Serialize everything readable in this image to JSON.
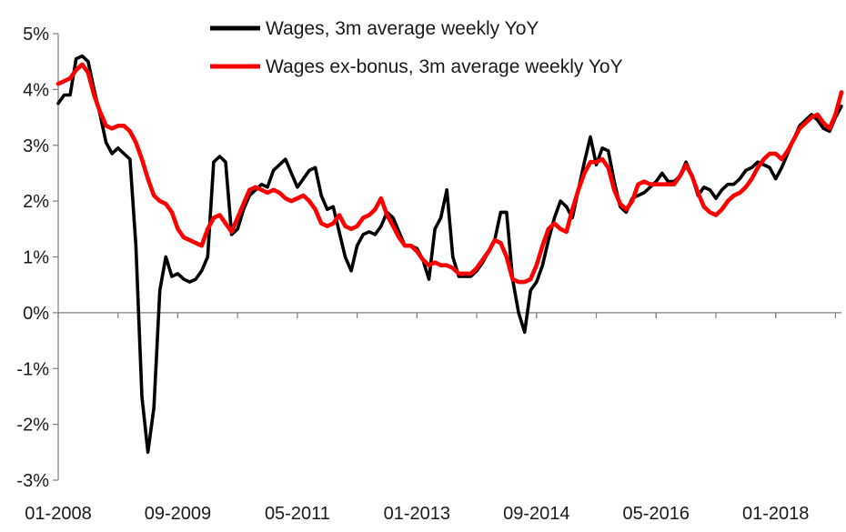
{
  "chart_data": {
    "type": "line",
    "title": "",
    "xlabel": "",
    "ylabel": "",
    "x_start": "01-2008",
    "x_end": "12-2018",
    "x_tick_labels": [
      "01-2008",
      "09-2009",
      "05-2011",
      "01-2013",
      "09-2014",
      "05-2016",
      "01-2018"
    ],
    "y_tick_labels": [
      "5%",
      "4%",
      "3%",
      "2%",
      "1%",
      "0%",
      "-1%",
      "-2%",
      "-3%"
    ],
    "ylim": [
      -3,
      5
    ],
    "grid": false,
    "legend_position": "top",
    "series": [
      {
        "name": "Wages, 3m average weekly YoY",
        "color": "#000000",
        "points": [
          [
            "01-2008",
            3.75
          ],
          [
            "02-2008",
            3.9
          ],
          [
            "03-2008",
            3.9
          ],
          [
            "04-2008",
            4.55
          ],
          [
            "05-2008",
            4.6
          ],
          [
            "06-2008",
            4.5
          ],
          [
            "07-2008",
            4.0
          ],
          [
            "08-2008",
            3.55
          ],
          [
            "09-2008",
            3.05
          ],
          [
            "10-2008",
            2.85
          ],
          [
            "11-2008",
            2.95
          ],
          [
            "12-2008",
            2.85
          ],
          [
            "01-2009",
            2.75
          ],
          [
            "02-2009",
            1.2
          ],
          [
            "03-2009",
            -1.5
          ],
          [
            "04-2009",
            -2.5
          ],
          [
            "05-2009",
            -1.7
          ],
          [
            "06-2009",
            0.4
          ],
          [
            "07-2009",
            1.0
          ],
          [
            "08-2009",
            0.65
          ],
          [
            "09-2009",
            0.7
          ],
          [
            "10-2009",
            0.6
          ],
          [
            "11-2009",
            0.55
          ],
          [
            "12-2009",
            0.6
          ],
          [
            "01-2010",
            0.75
          ],
          [
            "02-2010",
            1.0
          ],
          [
            "03-2010",
            2.7
          ],
          [
            "04-2010",
            2.8
          ],
          [
            "05-2010",
            2.7
          ],
          [
            "06-2010",
            1.4
          ],
          [
            "07-2010",
            1.5
          ],
          [
            "08-2010",
            1.85
          ],
          [
            "09-2010",
            2.1
          ],
          [
            "10-2010",
            2.2
          ],
          [
            "11-2010",
            2.3
          ],
          [
            "12-2010",
            2.25
          ],
          [
            "01-2011",
            2.55
          ],
          [
            "02-2011",
            2.65
          ],
          [
            "03-2011",
            2.75
          ],
          [
            "04-2011",
            2.5
          ],
          [
            "05-2011",
            2.25
          ],
          [
            "06-2011",
            2.4
          ],
          [
            "07-2011",
            2.55
          ],
          [
            "08-2011",
            2.6
          ],
          [
            "09-2011",
            2.1
          ],
          [
            "10-2011",
            1.85
          ],
          [
            "11-2011",
            1.9
          ],
          [
            "12-2011",
            1.45
          ],
          [
            "01-2012",
            1.0
          ],
          [
            "02-2012",
            0.75
          ],
          [
            "03-2012",
            1.2
          ],
          [
            "04-2012",
            1.4
          ],
          [
            "05-2012",
            1.45
          ],
          [
            "06-2012",
            1.4
          ],
          [
            "07-2012",
            1.55
          ],
          [
            "08-2012",
            1.8
          ],
          [
            "09-2012",
            1.7
          ],
          [
            "10-2012",
            1.45
          ],
          [
            "11-2012",
            1.2
          ],
          [
            "12-2012",
            1.2
          ],
          [
            "01-2013",
            1.15
          ],
          [
            "02-2013",
            0.95
          ],
          [
            "03-2013",
            0.6
          ],
          [
            "04-2013",
            1.5
          ],
          [
            "05-2013",
            1.7
          ],
          [
            "06-2013",
            2.2
          ],
          [
            "07-2013",
            1.0
          ],
          [
            "08-2013",
            0.65
          ],
          [
            "09-2013",
            0.65
          ],
          [
            "10-2013",
            0.65
          ],
          [
            "11-2013",
            0.75
          ],
          [
            "12-2013",
            0.9
          ],
          [
            "01-2014",
            1.1
          ],
          [
            "02-2014",
            1.3
          ],
          [
            "03-2014",
            1.8
          ],
          [
            "04-2014",
            1.8
          ],
          [
            "05-2014",
            0.6
          ],
          [
            "06-2014",
            0.0
          ],
          [
            "07-2014",
            -0.35
          ],
          [
            "08-2014",
            0.4
          ],
          [
            "09-2014",
            0.55
          ],
          [
            "10-2014",
            0.85
          ],
          [
            "11-2014",
            1.3
          ],
          [
            "12-2014",
            1.7
          ],
          [
            "01-2015",
            2.0
          ],
          [
            "02-2015",
            1.9
          ],
          [
            "03-2015",
            1.7
          ],
          [
            "04-2015",
            2.2
          ],
          [
            "05-2015",
            2.7
          ],
          [
            "06-2015",
            3.15
          ],
          [
            "07-2015",
            2.65
          ],
          [
            "08-2015",
            2.95
          ],
          [
            "09-2015",
            2.9
          ],
          [
            "10-2015",
            2.35
          ],
          [
            "11-2015",
            1.9
          ],
          [
            "12-2015",
            1.8
          ],
          [
            "01-2016",
            2.05
          ],
          [
            "02-2016",
            2.1
          ],
          [
            "03-2016",
            2.15
          ],
          [
            "04-2016",
            2.25
          ],
          [
            "05-2016",
            2.35
          ],
          [
            "06-2016",
            2.5
          ],
          [
            "07-2016",
            2.35
          ],
          [
            "08-2016",
            2.35
          ],
          [
            "09-2016",
            2.45
          ],
          [
            "10-2016",
            2.7
          ],
          [
            "11-2016",
            2.45
          ],
          [
            "12-2016",
            2.1
          ],
          [
            "01-2017",
            2.25
          ],
          [
            "02-2017",
            2.2
          ],
          [
            "03-2017",
            2.05
          ],
          [
            "04-2017",
            2.2
          ],
          [
            "05-2017",
            2.3
          ],
          [
            "06-2017",
            2.3
          ],
          [
            "07-2017",
            2.4
          ],
          [
            "08-2017",
            2.55
          ],
          [
            "09-2017",
            2.6
          ],
          [
            "10-2017",
            2.7
          ],
          [
            "11-2017",
            2.65
          ],
          [
            "12-2017",
            2.6
          ],
          [
            "01-2018",
            2.4
          ],
          [
            "02-2018",
            2.6
          ],
          [
            "03-2018",
            2.85
          ],
          [
            "04-2018",
            3.1
          ],
          [
            "05-2018",
            3.35
          ],
          [
            "06-2018",
            3.45
          ],
          [
            "07-2018",
            3.55
          ],
          [
            "08-2018",
            3.45
          ],
          [
            "09-2018",
            3.3
          ],
          [
            "10-2018",
            3.25
          ],
          [
            "11-2018",
            3.5
          ],
          [
            "12-2018",
            3.7
          ]
        ]
      },
      {
        "name": "Wages ex-bonus, 3m average weekly YoY",
        "color": "#ff0000",
        "points": [
          [
            "01-2008",
            4.1
          ],
          [
            "02-2008",
            4.15
          ],
          [
            "03-2008",
            4.2
          ],
          [
            "04-2008",
            4.35
          ],
          [
            "05-2008",
            4.45
          ],
          [
            "06-2008",
            4.3
          ],
          [
            "07-2008",
            3.9
          ],
          [
            "08-2008",
            3.6
          ],
          [
            "09-2008",
            3.35
          ],
          [
            "10-2008",
            3.3
          ],
          [
            "11-2008",
            3.35
          ],
          [
            "12-2008",
            3.35
          ],
          [
            "01-2009",
            3.25
          ],
          [
            "02-2009",
            3.05
          ],
          [
            "03-2009",
            2.75
          ],
          [
            "04-2009",
            2.4
          ],
          [
            "05-2009",
            2.1
          ],
          [
            "06-2009",
            2.0
          ],
          [
            "07-2009",
            1.95
          ],
          [
            "08-2009",
            1.8
          ],
          [
            "09-2009",
            1.5
          ],
          [
            "10-2009",
            1.35
          ],
          [
            "11-2009",
            1.3
          ],
          [
            "12-2009",
            1.25
          ],
          [
            "01-2010",
            1.2
          ],
          [
            "02-2010",
            1.5
          ],
          [
            "03-2010",
            1.7
          ],
          [
            "04-2010",
            1.75
          ],
          [
            "05-2010",
            1.6
          ],
          [
            "06-2010",
            1.45
          ],
          [
            "07-2010",
            1.7
          ],
          [
            "08-2010",
            1.95
          ],
          [
            "09-2010",
            2.2
          ],
          [
            "10-2010",
            2.25
          ],
          [
            "11-2010",
            2.2
          ],
          [
            "12-2010",
            2.15
          ],
          [
            "01-2011",
            2.2
          ],
          [
            "02-2011",
            2.15
          ],
          [
            "03-2011",
            2.05
          ],
          [
            "04-2011",
            2.0
          ],
          [
            "05-2011",
            2.05
          ],
          [
            "06-2011",
            2.1
          ],
          [
            "07-2011",
            2.0
          ],
          [
            "08-2011",
            1.85
          ],
          [
            "09-2011",
            1.6
          ],
          [
            "10-2011",
            1.55
          ],
          [
            "11-2011",
            1.6
          ],
          [
            "12-2011",
            1.75
          ],
          [
            "01-2012",
            1.55
          ],
          [
            "02-2012",
            1.5
          ],
          [
            "03-2012",
            1.55
          ],
          [
            "04-2012",
            1.7
          ],
          [
            "05-2012",
            1.75
          ],
          [
            "06-2012",
            1.85
          ],
          [
            "07-2012",
            2.05
          ],
          [
            "08-2012",
            1.75
          ],
          [
            "09-2012",
            1.55
          ],
          [
            "10-2012",
            1.35
          ],
          [
            "11-2012",
            1.2
          ],
          [
            "12-2012",
            1.2
          ],
          [
            "01-2013",
            1.1
          ],
          [
            "02-2013",
            0.95
          ],
          [
            "03-2013",
            0.85
          ],
          [
            "04-2013",
            0.9
          ],
          [
            "05-2013",
            0.85
          ],
          [
            "06-2013",
            0.85
          ],
          [
            "07-2013",
            0.8
          ],
          [
            "08-2013",
            0.7
          ],
          [
            "09-2013",
            0.7
          ],
          [
            "10-2013",
            0.7
          ],
          [
            "11-2013",
            0.8
          ],
          [
            "12-2013",
            0.95
          ],
          [
            "01-2014",
            1.1
          ],
          [
            "02-2014",
            1.3
          ],
          [
            "03-2014",
            1.25
          ],
          [
            "04-2014",
            1.0
          ],
          [
            "05-2014",
            0.6
          ],
          [
            "06-2014",
            0.55
          ],
          [
            "07-2014",
            0.55
          ],
          [
            "08-2014",
            0.6
          ],
          [
            "09-2014",
            0.85
          ],
          [
            "10-2014",
            1.2
          ],
          [
            "11-2014",
            1.5
          ],
          [
            "12-2014",
            1.6
          ],
          [
            "01-2015",
            1.5
          ],
          [
            "02-2015",
            1.45
          ],
          [
            "03-2015",
            1.85
          ],
          [
            "04-2015",
            2.2
          ],
          [
            "05-2015",
            2.5
          ],
          [
            "06-2015",
            2.7
          ],
          [
            "07-2015",
            2.7
          ],
          [
            "08-2015",
            2.75
          ],
          [
            "09-2015",
            2.6
          ],
          [
            "10-2015",
            2.2
          ],
          [
            "11-2015",
            1.95
          ],
          [
            "12-2015",
            1.85
          ],
          [
            "01-2016",
            2.0
          ],
          [
            "02-2016",
            2.3
          ],
          [
            "03-2016",
            2.35
          ],
          [
            "04-2016",
            2.3
          ],
          [
            "05-2016",
            2.3
          ],
          [
            "06-2016",
            2.3
          ],
          [
            "07-2016",
            2.3
          ],
          [
            "08-2016",
            2.3
          ],
          [
            "09-2016",
            2.45
          ],
          [
            "10-2016",
            2.65
          ],
          [
            "11-2016",
            2.45
          ],
          [
            "12-2016",
            2.15
          ],
          [
            "01-2017",
            1.9
          ],
          [
            "02-2017",
            1.8
          ],
          [
            "03-2017",
            1.75
          ],
          [
            "04-2017",
            1.85
          ],
          [
            "05-2017",
            2.0
          ],
          [
            "06-2017",
            2.1
          ],
          [
            "07-2017",
            2.15
          ],
          [
            "08-2017",
            2.25
          ],
          [
            "09-2017",
            2.4
          ],
          [
            "10-2017",
            2.6
          ],
          [
            "11-2017",
            2.75
          ],
          [
            "12-2017",
            2.85
          ],
          [
            "01-2018",
            2.85
          ],
          [
            "02-2018",
            2.75
          ],
          [
            "03-2018",
            2.9
          ],
          [
            "04-2018",
            3.1
          ],
          [
            "05-2018",
            3.3
          ],
          [
            "06-2018",
            3.4
          ],
          [
            "07-2018",
            3.5
          ],
          [
            "08-2018",
            3.55
          ],
          [
            "09-2018",
            3.4
          ],
          [
            "10-2018",
            3.3
          ],
          [
            "11-2018",
            3.55
          ],
          [
            "12-2018",
            3.95
          ]
        ]
      }
    ]
  }
}
